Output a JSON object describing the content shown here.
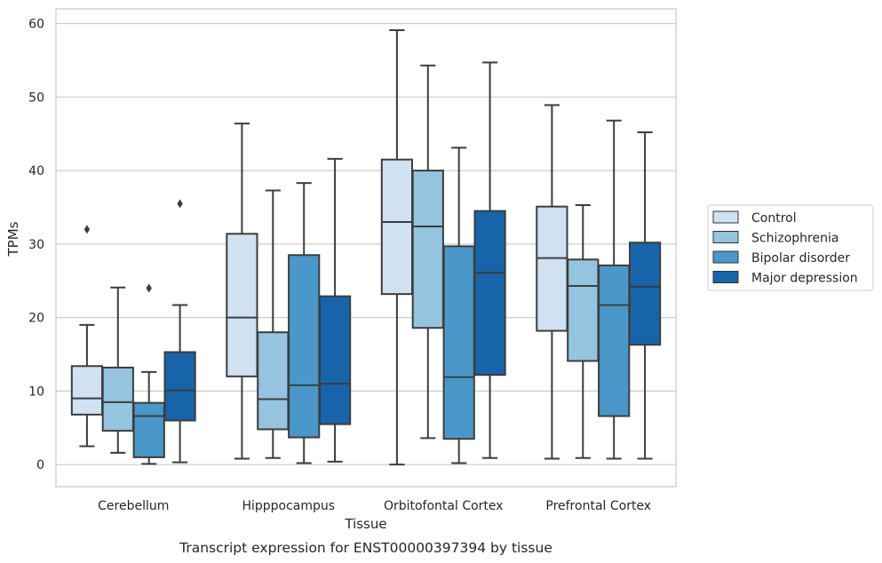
{
  "chart_data": {
    "type": "box",
    "caption": "Transcript expression for ENST00000397394 by tissue",
    "xlabel": "Tissue",
    "ylabel": "TPMs",
    "ylim": [
      -3,
      62
    ],
    "yticks": [
      0,
      10,
      20,
      30,
      40,
      50,
      60
    ],
    "grid": "horizontal",
    "legend_position": "right",
    "categories": [
      "Cerebellum",
      "Hipppocampus",
      "Orbitofontal Cortex",
      "Prefrontal Cortex"
    ],
    "series": [
      {
        "name": "Control",
        "color": "#d0e1f2",
        "boxes": [
          {
            "whisker_low": 2.5,
            "q1": 6.8,
            "median": 9.0,
            "q3": 13.4,
            "whisker_high": 19.0,
            "outliers": [
              32.0
            ]
          },
          {
            "whisker_low": 0.8,
            "q1": 12.0,
            "median": 20.0,
            "q3": 31.4,
            "whisker_high": 46.4,
            "outliers": []
          },
          {
            "whisker_low": 0.0,
            "q1": 23.2,
            "median": 33.0,
            "q3": 41.5,
            "whisker_high": 59.1,
            "outliers": []
          },
          {
            "whisker_low": 0.8,
            "q1": 18.2,
            "median": 28.1,
            "q3": 35.1,
            "whisker_high": 48.9,
            "outliers": []
          }
        ]
      },
      {
        "name": "Schizophrenia",
        "color": "#94c4df",
        "boxes": [
          {
            "whisker_low": 1.6,
            "q1": 4.6,
            "median": 8.5,
            "q3": 13.2,
            "whisker_high": 24.1,
            "outliers": []
          },
          {
            "whisker_low": 0.9,
            "q1": 4.8,
            "median": 8.9,
            "q3": 18.0,
            "whisker_high": 37.3,
            "outliers": []
          },
          {
            "whisker_low": 3.6,
            "q1": 18.6,
            "median": 32.4,
            "q3": 40.0,
            "whisker_high": 54.3,
            "outliers": []
          },
          {
            "whisker_low": 0.9,
            "q1": 14.1,
            "median": 24.3,
            "q3": 27.9,
            "whisker_high": 35.3,
            "outliers": []
          }
        ]
      },
      {
        "name": "Bipolar disorder",
        "color": "#4a98c9",
        "boxes": [
          {
            "whisker_low": 0.1,
            "q1": 1.0,
            "median": 6.6,
            "q3": 8.4,
            "whisker_high": 12.6,
            "outliers": [
              24.0
            ]
          },
          {
            "whisker_low": 0.2,
            "q1": 3.7,
            "median": 10.8,
            "q3": 28.5,
            "whisker_high": 38.3,
            "outliers": []
          },
          {
            "whisker_low": 0.2,
            "q1": 3.5,
            "median": 11.9,
            "q3": 29.7,
            "whisker_high": 43.1,
            "outliers": []
          },
          {
            "whisker_low": 0.8,
            "q1": 6.6,
            "median": 21.7,
            "q3": 27.1,
            "whisker_high": 46.8,
            "outliers": []
          }
        ]
      },
      {
        "name": "Major depression",
        "color": "#1764ab",
        "boxes": [
          {
            "whisker_low": 0.3,
            "q1": 6.0,
            "median": 10.1,
            "q3": 15.3,
            "whisker_high": 21.7,
            "outliers": [
              35.5
            ]
          },
          {
            "whisker_low": 0.4,
            "q1": 5.5,
            "median": 11.0,
            "q3": 22.9,
            "whisker_high": 41.6,
            "outliers": []
          },
          {
            "whisker_low": 0.9,
            "q1": 12.2,
            "median": 26.1,
            "q3": 34.5,
            "whisker_high": 54.7,
            "outliers": []
          },
          {
            "whisker_low": 0.8,
            "q1": 16.3,
            "median": 24.2,
            "q3": 30.2,
            "whisker_high": 45.2,
            "outliers": []
          }
        ]
      }
    ]
  }
}
